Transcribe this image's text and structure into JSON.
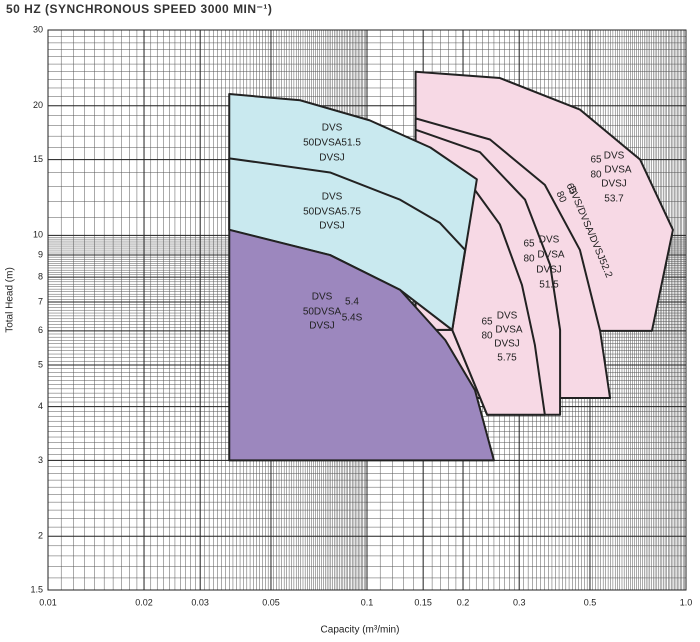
{
  "chart_data": {
    "type": "region",
    "title": "50 HZ (SYNCHRONOUS SPEED 3000 MIN⁻¹)",
    "x_label": "Capacity (m³/min)",
    "y_label": "Total Head (m)",
    "xscale": "log",
    "yscale": "log",
    "grid": true,
    "xlim": [
      0.01,
      1
    ],
    "ylim": [
      1.5,
      30
    ],
    "xticks": [
      0.01,
      0.02,
      0.03,
      0.05,
      0.1,
      0.15,
      0.2,
      0.3,
      0.5,
      {
        "value": 1,
        "label": "1.0"
      }
    ],
    "yticks": [
      1.5,
      2,
      3,
      4,
      5,
      6,
      7,
      8,
      9,
      10,
      15,
      20,
      30
    ],
    "regions": [
      {
        "color": "#f7d9e5",
        "labels": [
          "65",
          "80",
          "DVS",
          "DVSA",
          "DVSJ",
          "53.7"
        ],
        "x": [
          0.142,
          0.261,
          0.465,
          0.718,
          0.91,
          0.782,
          0.142
        ],
        "y": [
          24,
          23.2,
          19.6,
          15,
          10.3,
          6,
          6
        ]
      },
      {
        "color": "#f7d9e5",
        "labels": [
          "65",
          "80",
          "DVS/DVSA/DVSJ52.2"
        ],
        "x": [
          0.142,
          0.243,
          0.361,
          0.465,
          0.538,
          0.578,
          0.142
        ],
        "y": [
          18.7,
          16.7,
          13.1,
          9.25,
          6,
          4.19,
          4.19
        ]
      },
      {
        "color": "#f7d9e5",
        "labels": [
          "65",
          "80",
          "DVS",
          "DVSA",
          "DVSJ",
          "51.5"
        ],
        "x": [
          0.142,
          0.226,
          0.313,
          0.375,
          0.403,
          0.403,
          0.238,
          0.185,
          0.142
        ],
        "y": [
          17.6,
          15.6,
          12.1,
          8.54,
          6.03,
          3.83,
          3.83,
          6.03,
          6.03
        ]
      },
      {
        "color": "#f7d9e5",
        "labels": [
          "65",
          "80",
          "DVS",
          "DVSA",
          "DVSJ",
          "5.75"
        ],
        "x": [
          0.142,
          0.203,
          0.261,
          0.306,
          0.336,
          0.361,
          0.238,
          0.185,
          0.142
        ],
        "y": [
          15.6,
          13.7,
          10.6,
          7.67,
          5.56,
          3.83,
          3.83,
          6.03,
          6.03
        ]
      },
      {
        "color": "#c9e9ef",
        "labels": [
          "DVS",
          "50DVSA51.5",
          "DVSJ"
        ],
        "x": [
          0.037,
          0.0617,
          0.102,
          0.158,
          0.221,
          0.185,
          0.127,
          0.0766,
          0.037
        ],
        "y": [
          21.3,
          20.6,
          18.5,
          16,
          13.5,
          6.03,
          7.47,
          9,
          10.3
        ]
      },
      {
        "color": "#c9e9ef",
        "labels": [
          "DVS",
          "50DVSA5.75",
          "DVSJ"
        ],
        "x": [
          0.037,
          0.0766,
          0.127,
          0.169,
          0.203,
          0.185,
          0.127,
          0.0766,
          0.037
        ],
        "y": [
          15.1,
          14,
          12.1,
          10.7,
          9.25,
          6.03,
          7.47,
          9,
          10.3
        ]
      },
      {
        "color": "#9c87be",
        "labels": [
          "DVS",
          "50DVSA",
          "DVSJ",
          "5.4",
          "5.4S"
        ],
        "x": [
          0.037,
          0.037,
          0.0766,
          0.127,
          0.176,
          0.218,
          0.25
        ],
        "y": [
          3,
          10.3,
          9,
          7.47,
          5.71,
          4.37,
          3
        ]
      }
    ]
  }
}
